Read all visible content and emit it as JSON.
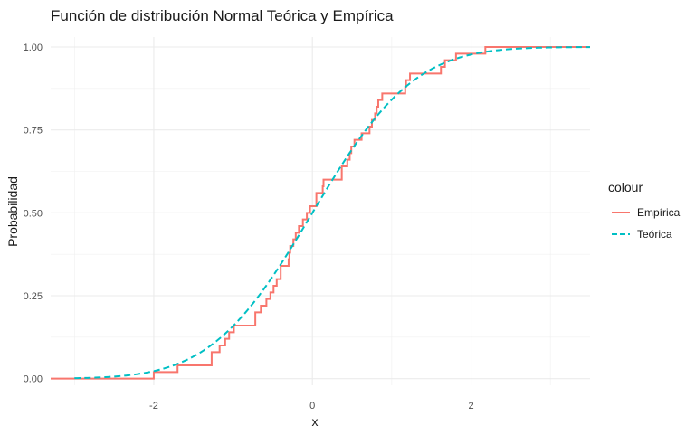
{
  "chart_data": {
    "type": "line",
    "title": "Función de distribución Normal Teórica y Empírica",
    "xlabel": "x",
    "ylabel": "Probabilidad",
    "xlim": [
      -3.3,
      3.5
    ],
    "ylim": [
      -0.02,
      1.03
    ],
    "x_ticks": [
      -2,
      0,
      2
    ],
    "y_ticks": [
      0,
      0.25,
      0.5,
      0.75,
      1
    ],
    "y_tick_labels": [
      "0.00",
      "0.25",
      "0.50",
      "0.75",
      "1.00"
    ],
    "x_tick_labels": [
      "-2",
      "0",
      "2"
    ],
    "grid": true,
    "legend": {
      "title": "colour",
      "position": "right",
      "entries": [
        "Empírica",
        "Teórica"
      ]
    },
    "series": [
      {
        "name": "Empírica",
        "style": "step",
        "color": "#F8766D",
        "x": [
          -3.3,
          -2.0,
          -1.7,
          -1.27,
          -1.17,
          -1.1,
          -1.05,
          -0.99,
          -0.98,
          -0.96,
          -0.93,
          -0.91,
          -0.88,
          -0.86,
          -0.72,
          -0.65,
          -0.58,
          -0.53,
          -0.49,
          -0.45,
          -0.4,
          -0.3,
          -0.29,
          -0.28,
          -0.27,
          -0.24,
          -0.21,
          -0.17,
          -0.12,
          -0.07,
          -0.03,
          0.05,
          0.13,
          0.14,
          0.16,
          0.37,
          0.44,
          0.47,
          0.49,
          0.53,
          0.55,
          0.58,
          0.62,
          0.72,
          0.75,
          0.79,
          0.81,
          0.83,
          0.86,
          0.88,
          0.92,
          0.93,
          1.09,
          1.17,
          1.18,
          1.23,
          1.29,
          1.62,
          1.67,
          1.75,
          1.81,
          1.89,
          2.15,
          2.18,
          3.5
        ],
        "y": [
          0.0,
          0.02,
          0.04,
          0.08,
          0.1,
          0.12,
          0.14,
          0.16,
          0.16,
          0.16,
          0.16,
          0.16,
          0.16,
          0.16,
          0.2,
          0.22,
          0.24,
          0.26,
          0.28,
          0.3,
          0.34,
          0.36,
          0.38,
          0.4,
          0.4,
          0.42,
          0.44,
          0.46,
          0.48,
          0.5,
          0.52,
          0.56,
          0.58,
          0.6,
          0.6,
          0.64,
          0.66,
          0.68,
          0.7,
          0.72,
          0.72,
          0.72,
          0.74,
          0.76,
          0.78,
          0.8,
          0.82,
          0.84,
          0.84,
          0.86,
          0.86,
          0.86,
          0.86,
          0.88,
          0.9,
          0.92,
          0.92,
          0.94,
          0.96,
          0.96,
          0.98,
          0.98,
          0.98,
          1.0,
          1.0
        ]
      },
      {
        "name": "Teórica",
        "style": "dashed",
        "color": "#00BFC4",
        "x_start": -3.0,
        "x_end": 3.5,
        "function": "normal_cdf"
      }
    ]
  }
}
